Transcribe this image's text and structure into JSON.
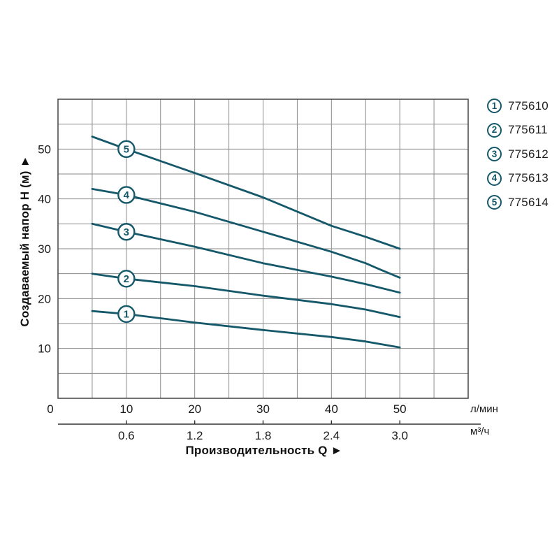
{
  "chart_data": {
    "type": "line",
    "title": "",
    "xlabel": "Производительность Q ►",
    "ylabel": "Создаваемый напор H (м) ►",
    "x_axis": {
      "unit": "л/мин",
      "tick_values": [
        0,
        10,
        20,
        30,
        40,
        50
      ],
      "range": [
        0,
        60
      ],
      "grid_step": 5
    },
    "x_axis_secondary": {
      "unit": "м³/ч",
      "tick_labels": [
        "0.6",
        "1.2",
        "1.8",
        "2.4",
        "3.0"
      ],
      "tick_at_lmin": [
        10,
        20,
        30,
        40,
        50
      ]
    },
    "y_axis": {
      "tick_values": [
        10,
        20,
        30,
        40,
        50
      ],
      "range": [
        0,
        60
      ],
      "grid_step": 5
    },
    "grid": true,
    "legend_position": "right",
    "series": [
      {
        "num": "1",
        "code": "775610",
        "label_q": 10,
        "points": [
          [
            5,
            17.5
          ],
          [
            10,
            16.9
          ],
          [
            20,
            15.2
          ],
          [
            30,
            13.7
          ],
          [
            40,
            12.3
          ],
          [
            45,
            11.4
          ],
          [
            50,
            10.2
          ]
        ]
      },
      {
        "num": "2",
        "code": "775611",
        "label_q": 10,
        "points": [
          [
            5,
            25.0
          ],
          [
            10,
            24.0
          ],
          [
            20,
            22.5
          ],
          [
            30,
            20.6
          ],
          [
            40,
            18.9
          ],
          [
            45,
            17.8
          ],
          [
            50,
            16.3
          ]
        ]
      },
      {
        "num": "3",
        "code": "775612",
        "label_q": 10,
        "points": [
          [
            5,
            35.0
          ],
          [
            10,
            33.4
          ],
          [
            20,
            30.4
          ],
          [
            30,
            27.1
          ],
          [
            40,
            24.4
          ],
          [
            45,
            22.9
          ],
          [
            50,
            21.2
          ]
        ]
      },
      {
        "num": "4",
        "code": "775613",
        "label_q": 10,
        "points": [
          [
            5,
            42.0
          ],
          [
            10,
            40.8
          ],
          [
            20,
            37.4
          ],
          [
            30,
            33.4
          ],
          [
            40,
            29.4
          ],
          [
            45,
            27.1
          ],
          [
            47,
            25.9
          ],
          [
            50,
            24.2
          ]
        ]
      },
      {
        "num": "5",
        "code": "775614",
        "label_q": 10,
        "points": [
          [
            5,
            52.5
          ],
          [
            10,
            50.0
          ],
          [
            20,
            45.2
          ],
          [
            30,
            40.3
          ],
          [
            40,
            34.6
          ],
          [
            45,
            32.4
          ],
          [
            50,
            30.0
          ]
        ]
      }
    ],
    "colors": {
      "curve": "#14586a",
      "grid": "#8a8a8a",
      "border": "#4f4f4f",
      "text": "#1a1a1a",
      "axis2": "#333333"
    }
  }
}
